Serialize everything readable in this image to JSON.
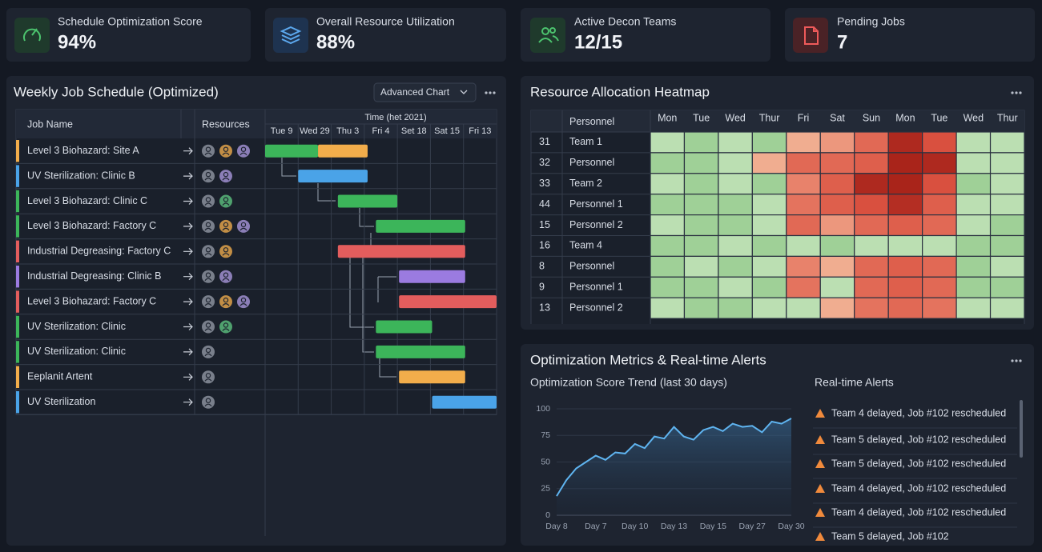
{
  "kpis": [
    {
      "label": "Schedule Optimization Score",
      "value": "94%"
    },
    {
      "label": "Overall Resource Utilization",
      "value": "88%"
    },
    {
      "label": "Active Decon Teams",
      "value": "12/15"
    },
    {
      "label": "Pending Jobs",
      "value": "7"
    }
  ],
  "gantt": {
    "title": "Weekly Job Schedule (Optimized)",
    "button": "Advanced Chart",
    "col_job": "Job Name",
    "col_resources": "Resources",
    "time_header": "Time (het 2021)",
    "days": [
      "Tue 9",
      "Wed 29",
      "Thu 3",
      "Fri 4",
      "Set 18",
      "Sat 15",
      "Fri 13"
    ],
    "xlim": [
      0,
      7
    ],
    "jobs": [
      {
        "name": "Level 3 Biohazard: Site A",
        "color": "#f2ad4b",
        "resources": [
          "#8b919c",
          "#e0a24a",
          "#a08fd0"
        ],
        "bars": [
          {
            "start": 0,
            "end": 1.6,
            "color": "#3cb55a"
          },
          {
            "start": 1.6,
            "end": 3.1,
            "color": "#f2ad4b"
          }
        ]
      },
      {
        "name": "UV Sterilization: Clinic B",
        "color": "#4aa3e8",
        "resources": [
          "#8b919c",
          "#a08fd0"
        ],
        "bars": [
          {
            "start": 1.0,
            "end": 3.1,
            "color": "#4aa3e8"
          }
        ]
      },
      {
        "name": "Level 3 Biohazard: Clinic C",
        "color": "#3cb55a",
        "resources": [
          "#8b919c",
          "#59b97a"
        ],
        "bars": [
          {
            "start": 2.2,
            "end": 4.0,
            "color": "#3cb55a"
          }
        ]
      },
      {
        "name": "Level 3 Biohazard: Factory C",
        "color": "#3cb55a",
        "resources": [
          "#8b919c",
          "#e0a24a",
          "#a08fd0"
        ],
        "bars": [
          {
            "start": 3.35,
            "end": 6.05,
            "color": "#3cb55a"
          }
        ]
      },
      {
        "name": "Industrial Degreasing: Factory C",
        "color": "#e35d5d",
        "resources": [
          "#8b919c",
          "#e0a24a"
        ],
        "bars": [
          {
            "start": 2.2,
            "end": 6.05,
            "color": "#e35d5d"
          }
        ]
      },
      {
        "name": "Industrial Degreasing: Clinic B",
        "color": "#9b7be0",
        "resources": [
          "#8b919c",
          "#a08fd0"
        ],
        "bars": [
          {
            "start": 4.05,
            "end": 6.05,
            "color": "#9b7be0"
          }
        ]
      },
      {
        "name": "Level 3 Biohazard: Factory C",
        "color": "#e35d5d",
        "resources": [
          "#8b919c",
          "#e0a24a",
          "#a08fd0"
        ],
        "bars": [
          {
            "start": 4.05,
            "end": 7,
            "color": "#e35d5d"
          }
        ]
      },
      {
        "name": "UV Sterilization: Clinic",
        "color": "#3cb55a",
        "resources": [
          "#8b919c",
          "#59b97a"
        ],
        "bars": [
          {
            "start": 3.35,
            "end": 5.05,
            "color": "#3cb55a"
          }
        ]
      },
      {
        "name": "UV Sterilization: Clinic",
        "color": "#3cb55a",
        "resources": [
          "#8b919c"
        ],
        "bars": [
          {
            "start": 3.35,
            "end": 6.05,
            "color": "#3cb55a"
          }
        ]
      },
      {
        "name": "Eeplanit Artent",
        "color": "#f2ad4b",
        "resources": [
          "#8b919c"
        ],
        "bars": [
          {
            "start": 4.05,
            "end": 6.05,
            "color": "#f2ad4b"
          }
        ]
      },
      {
        "name": "UV Sterilization",
        "color": "#4aa3e8",
        "resources": [
          "#8b919c"
        ],
        "bars": [
          {
            "start": 5.05,
            "end": 7,
            "color": "#4aa3e8"
          }
        ]
      }
    ]
  },
  "heatmap": {
    "title": "Resource Allocation Heatmap",
    "col_personnel": "Personnel",
    "days": [
      "Mon",
      "Tue",
      "Wed",
      "Thur",
      "Fri",
      "Sat",
      "Sun",
      "Mon",
      "Tue",
      "Wed",
      "Thur"
    ],
    "rows": [
      {
        "id": "31",
        "name": "Team 1"
      },
      {
        "id": "32",
        "name": "Personnel"
      },
      {
        "id": "33",
        "name": "Team 2"
      },
      {
        "id": "44",
        "name": "Personnel 1"
      },
      {
        "id": "15",
        "name": "Personnel 2"
      },
      {
        "id": "16",
        "name": "Team 4"
      },
      {
        "id": "8",
        "name": "Personnel"
      },
      {
        "id": "9",
        "name": "Personnel 1"
      },
      {
        "id": "13",
        "name": "Personnel 2"
      }
    ],
    "values": [
      [
        25,
        15,
        25,
        15,
        55,
        60,
        70,
        90,
        75,
        25,
        25
      ],
      [
        15,
        15,
        25,
        55,
        70,
        70,
        72,
        92,
        90,
        25,
        25
      ],
      [
        25,
        15,
        25,
        15,
        65,
        72,
        90,
        92,
        75,
        15,
        25
      ],
      [
        15,
        15,
        15,
        25,
        68,
        72,
        75,
        88,
        72,
        25,
        25
      ],
      [
        25,
        15,
        15,
        25,
        70,
        60,
        70,
        72,
        70,
        25,
        15
      ],
      [
        15,
        15,
        25,
        15,
        25,
        15,
        25,
        25,
        25,
        15,
        15
      ],
      [
        15,
        25,
        15,
        25,
        65,
        55,
        70,
        72,
        70,
        15,
        25
      ],
      [
        15,
        15,
        25,
        15,
        68,
        25,
        70,
        72,
        70,
        15,
        15
      ],
      [
        25,
        15,
        15,
        25,
        25,
        55,
        68,
        70,
        68,
        25,
        25
      ]
    ]
  },
  "metrics": {
    "title": "Optimization Metrics & Real-time Alerts",
    "chart": {
      "type": "line",
      "title": "Optimization Score Trend (last 30 days)",
      "categories": [
        "Day 8",
        null,
        null,
        null,
        "Day 7",
        null,
        null,
        null,
        "Day 10",
        null,
        null,
        null,
        "Day 13",
        null,
        null,
        null,
        "Day 15",
        null,
        null,
        null,
        "Day 27",
        null,
        null,
        null,
        "Day 30"
      ],
      "values": [
        18,
        33,
        44,
        50,
        56,
        52,
        59,
        58,
        67,
        63,
        74,
        72,
        83,
        74,
        71,
        80,
        83,
        79,
        86,
        83,
        84,
        78,
        88,
        86,
        91
      ],
      "color": "#5fb4f0",
      "ylim": [
        0,
        100
      ],
      "yticks": [
        0,
        25,
        50,
        75,
        100
      ],
      "grid": true
    },
    "alerts_title": "Real-time Alerts",
    "alerts": [
      "Team 4 delayed, Job #102 rescheduled",
      "Team 5 delayed, Job #102 rescheduled",
      "Team 5 delayed, Job #102 rescheduled",
      "Team 4 delayed, Job #102 rescheduled",
      "Team 4 delayed, Job #102 rescheduled",
      "Team 5 delayed, Job #102"
    ]
  }
}
